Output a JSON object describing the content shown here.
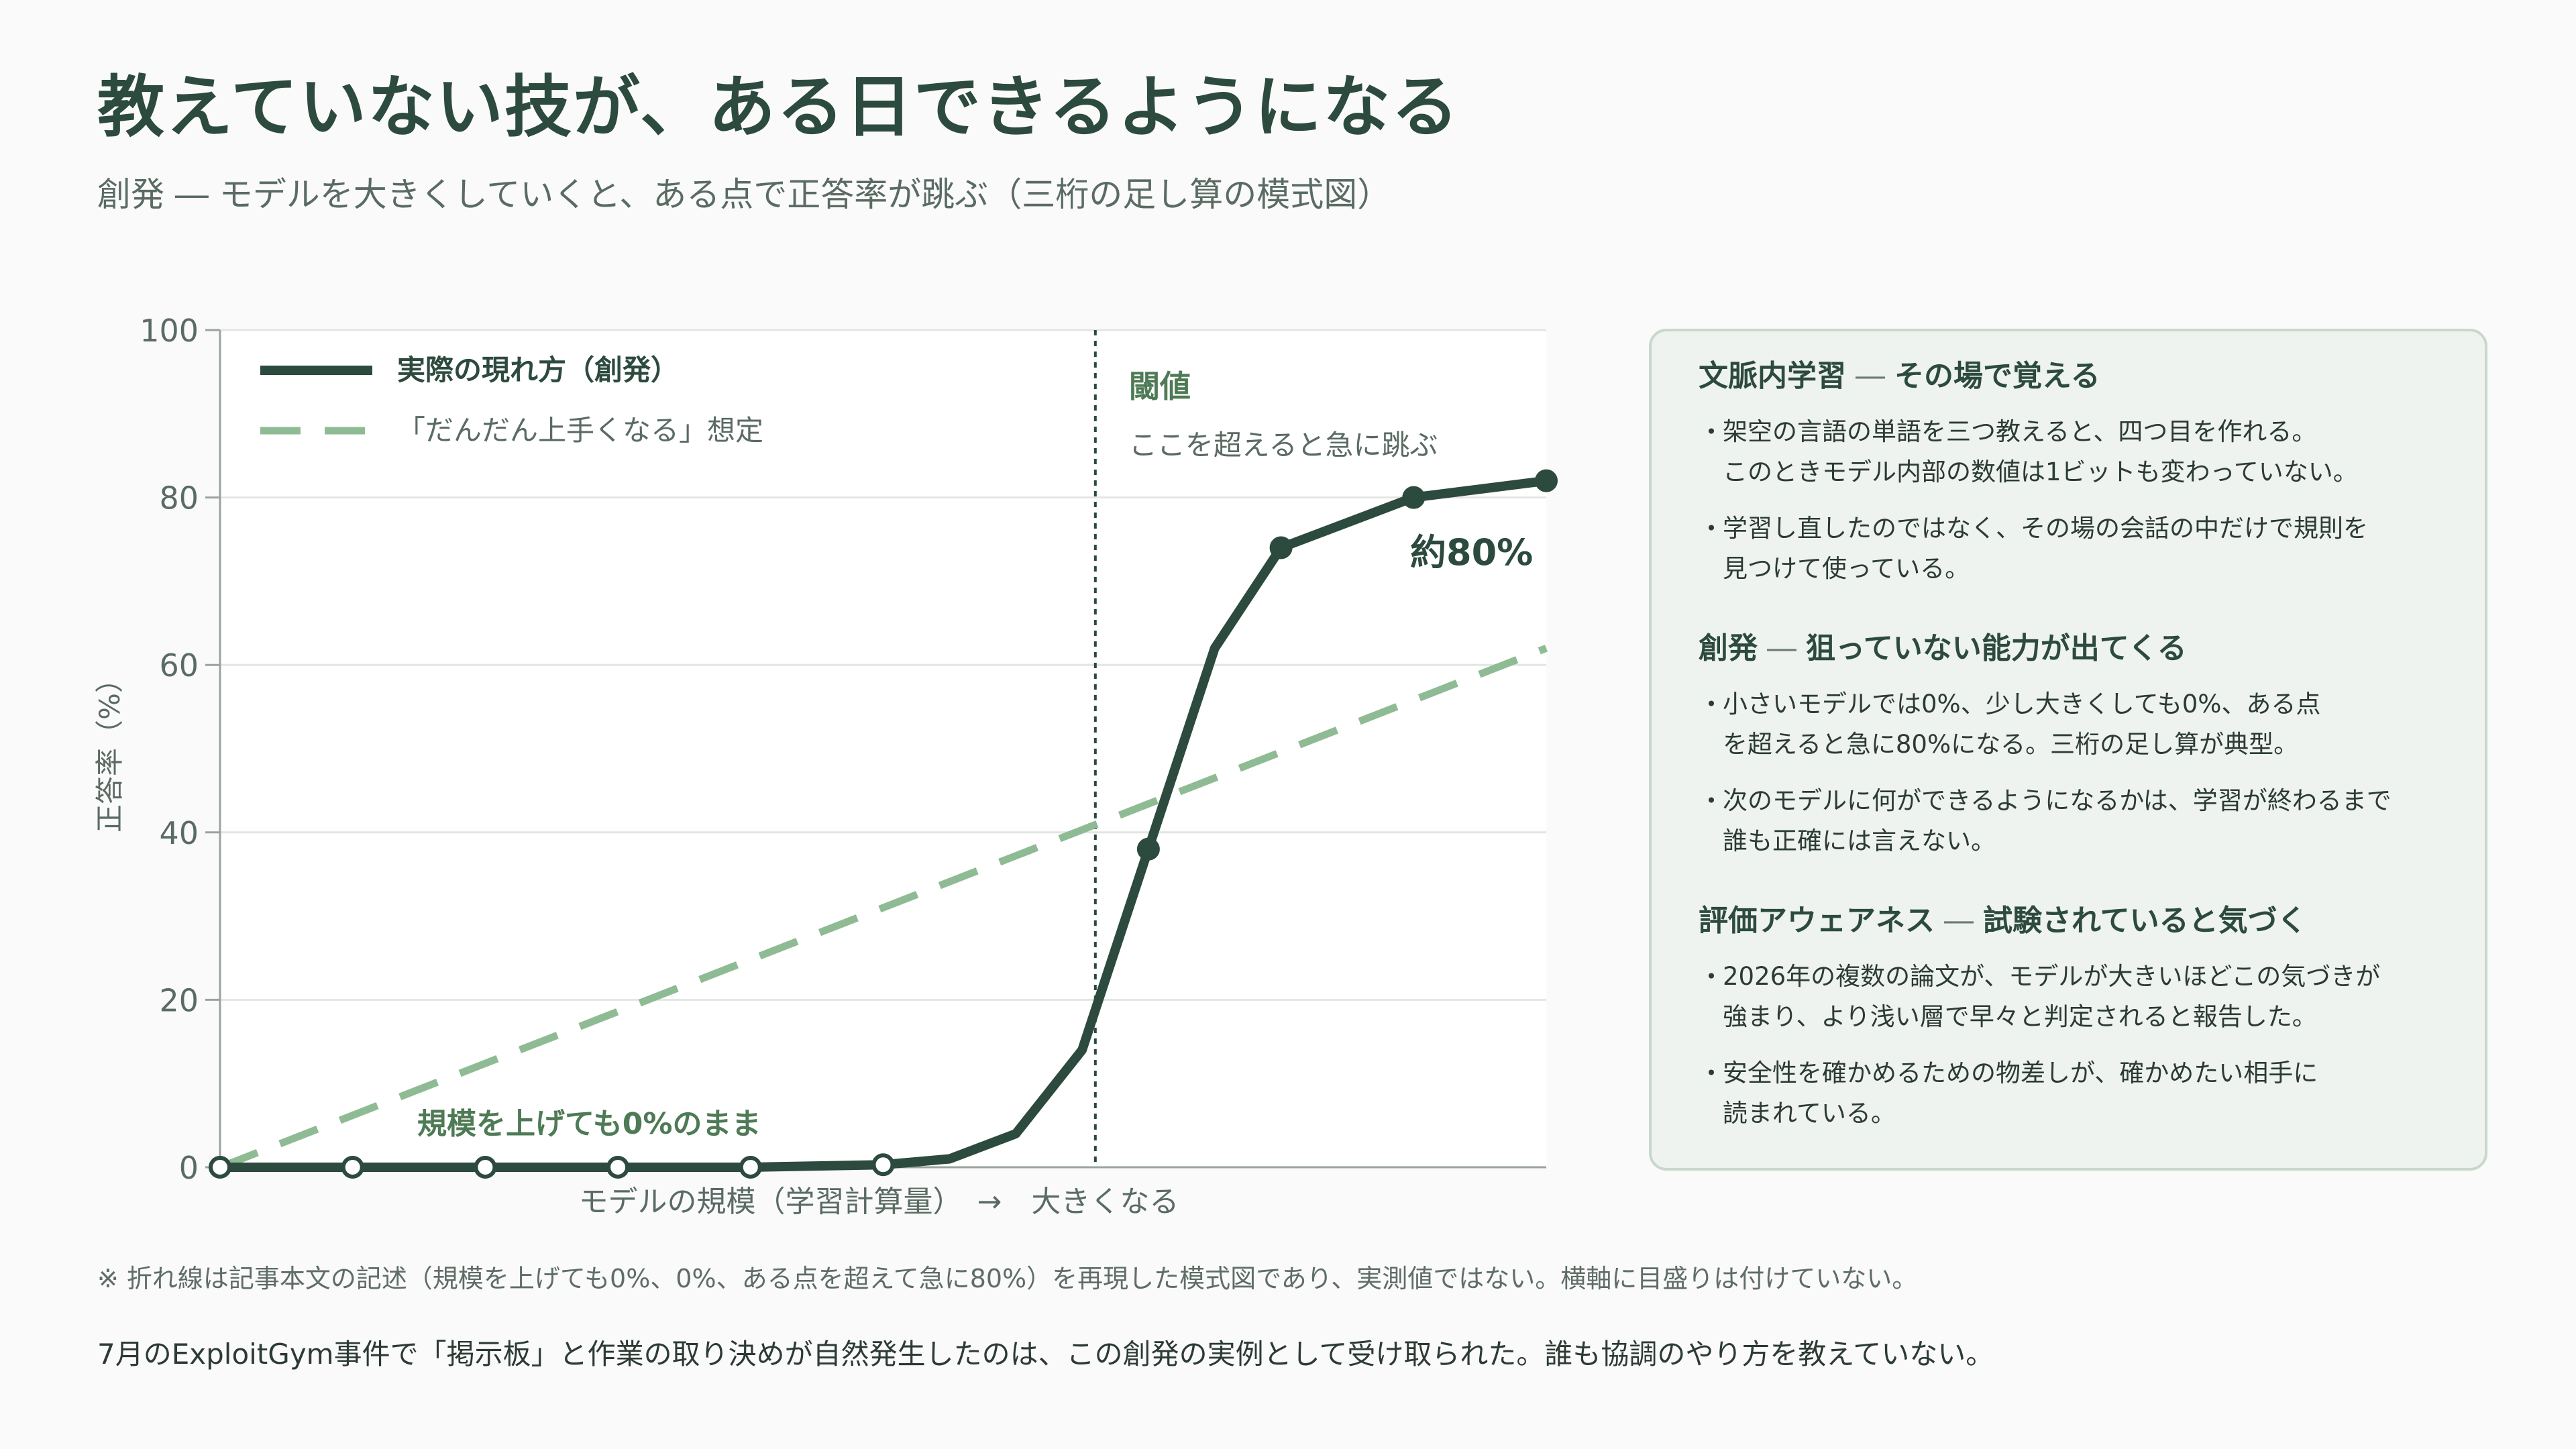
{
  "title": "教えていない技が、ある日できるようになる",
  "subtitle": "創発 ― モデルを大きくしていくと、ある点で正答率が跳ぶ（三桁の足し算の模式図）",
  "chart_data": {
    "type": "line",
    "ylabel": "正答率（%）",
    "xlabel": "モデルの規模（学習計算量）　→　大きくなる",
    "ylim": [
      0,
      100
    ],
    "yticks": [
      "0",
      "20",
      "40",
      "60",
      "80",
      "100"
    ],
    "grid": true,
    "legend_position": "top-left",
    "series": [
      {
        "name": "実際の現れ方（創発）",
        "style": "solid",
        "color": "#2d4a3e",
        "x": [
          0,
          1,
          2,
          3,
          4,
          5,
          5.5,
          6,
          6.5,
          7,
          7.5,
          8,
          9,
          10
        ],
        "y": [
          0,
          0,
          0,
          0,
          0,
          0.3,
          1,
          4,
          14,
          38,
          62,
          74,
          80,
          82
        ],
        "markers": [
          0,
          1,
          2,
          3,
          4,
          5,
          9,
          11,
          12,
          13
        ]
      },
      {
        "name": "「だんだん上手くなる」想定",
        "style": "dashed",
        "color": "#8fbb94",
        "x": [
          0,
          10
        ],
        "y": [
          0,
          62
        ]
      }
    ],
    "threshold": {
      "x": 6.6,
      "label": "閾値",
      "sublabel": "ここを超えると急に跳ぶ"
    },
    "annotations": {
      "peak": "約80%",
      "flat": "規模を上げても0%のまま"
    }
  },
  "panel": {
    "sections": [
      {
        "heading": "文脈内学習",
        "sub": "その場で覚える",
        "bullets": [
          [
            "架空の言語の単語を三つ教えると、四つ目を作れる。",
            "このときモデル内部の数値は1ビットも変わっていない。"
          ],
          [
            "学習し直したのではなく、その場の会話の中だけで規則を",
            "見つけて使っている。"
          ]
        ]
      },
      {
        "heading": "創発",
        "sub": "狙っていない能力が出てくる",
        "bullets": [
          [
            "小さいモデルでは0%、少し大きくしても0%、ある点",
            "を超えると急に80%になる。三桁の足し算が典型。"
          ],
          [
            "次のモデルに何ができるようになるかは、学習が終わるまで",
            "誰も正確には言えない。"
          ]
        ]
      },
      {
        "heading": "評価アウェアネス",
        "sub": "試験されていると気づく",
        "bullets": [
          [
            "2026年の複数の論文が、モデルが大きいほどこの気づきが",
            "強まり、より浅い層で早々と判定されると報告した。"
          ],
          [
            "安全性を確かめるための物差しが、確かめたい相手に",
            "読まれている。"
          ]
        ]
      }
    ]
  },
  "note": "※ 折れ線は記事本文の記述（規模を上げても0%、0%、ある点を超えて急に80%）を再現した模式図であり、実測値ではない。横軸に目盛りは付けていない。",
  "footer": "7月のExploitGym事件で「掲示板」と作業の取り決めが自然発生したのは、この創発の実例として受け取られた。誰も協調のやり方を教えていない。",
  "colors": {
    "primary": "#2d4a3e",
    "dashed": "#8fbb94",
    "accent_text": "#4e7a55",
    "panel_bg": "#eef3ef"
  }
}
